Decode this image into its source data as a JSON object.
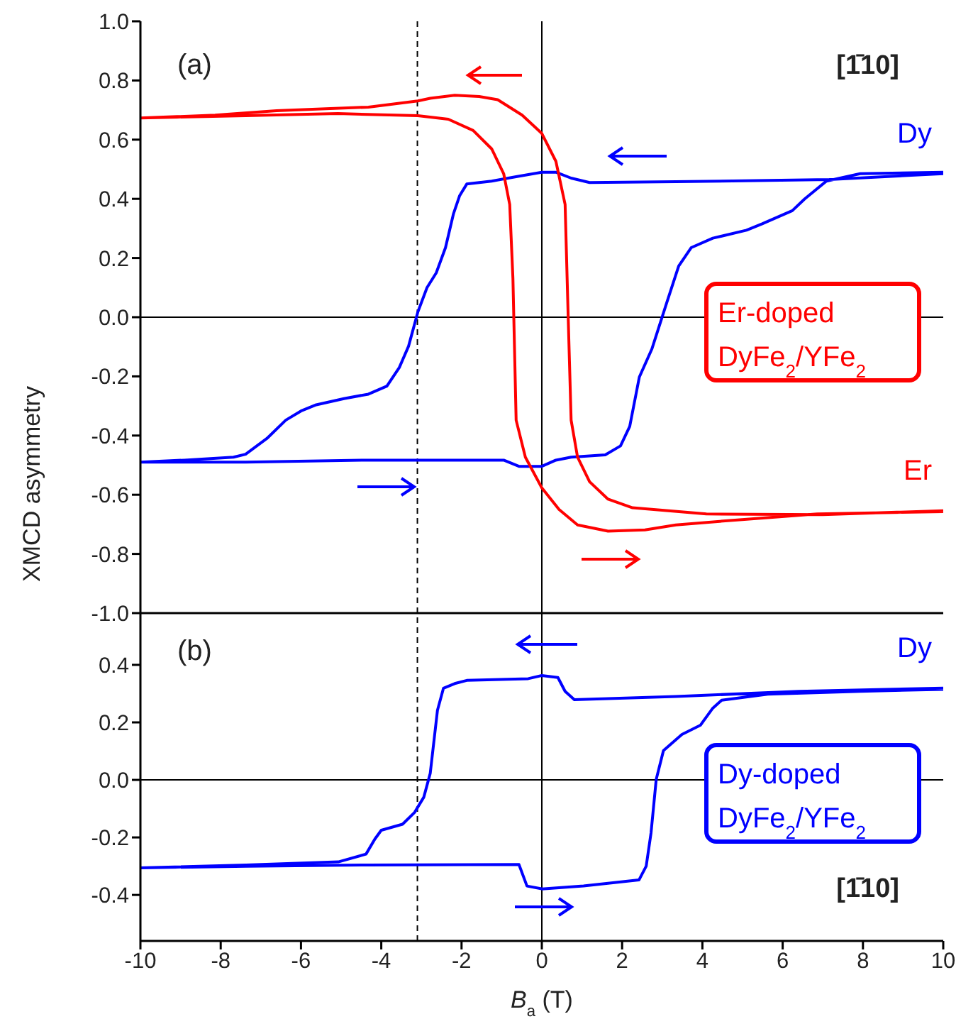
{
  "chart_data": [
    {
      "type": "line",
      "ylabel": "XMCD asymmetry",
      "annotations": [
        "(a)",
        "[1̄10]",
        "Er-doped DyFe$_{2}$/YFe$_{2}$"
      ],
      "xlim": [
        -10,
        10
      ],
      "xticks": [
        -10,
        -8,
        -6,
        -4,
        -2,
        0,
        2,
        4,
        6,
        8,
        10
      ],
      "ylim": [
        -1,
        1
      ],
      "yticks": [
        {
          "value": -1,
          "label": "-1.0"
        },
        -0.8,
        -0.6,
        -0.4,
        -0.2,
        {
          "value": 0,
          "label": "0.0"
        },
        0.2,
        0.4,
        0.6,
        0.8,
        {
          "value": 1,
          "label": "1.0"
        }
      ],
      "tick_labels": "y",
      "grid": false,
      "legend": false,
      "marker": "none",
      "line_style": "solid",
      "ref_lines": [
        {
          "axis": "x",
          "value": -3.1,
          "color": "#000000",
          "line_style": "dashed"
        },
        {
          "axis": "x",
          "value": 0,
          "color": "#000000",
          "line_style": "solid"
        },
        {
          "axis": "y",
          "value": 0,
          "color": "#000000",
          "line_style": "solid"
        }
      ],
      "series": [
        {
          "name": "Dy",
          "color": "#0000ff",
          "x": [
            10,
            7.16,
            3.34,
            1.19,
            0.73,
            0.35,
            0,
            -0.64,
            -1.25,
            -1.87,
            -2.05,
            -2.2,
            -2.4,
            -2.63,
            -2.86,
            -3.09,
            -3.32,
            -3.55,
            -3.86,
            -4.32,
            -4.93,
            -5.62,
            -6,
            -6.38,
            -6.85,
            -7.38,
            -7.68,
            -8.9,
            -10,
            -7.38,
            -4.32,
            -0.95,
            -0.57,
            0,
            0.35,
            0.73,
            1.58,
            1.96,
            2.19,
            2.43,
            2.74,
            3.11,
            3.41,
            3.72,
            4.26,
            5.1,
            5.48,
            6.24,
            6.55,
            7.09,
            7.93,
            10
          ],
          "values": [
            0.485,
            0.465,
            0.458,
            0.455,
            0.47,
            0.49,
            0.49,
            0.475,
            0.46,
            0.45,
            0.41,
            0.35,
            0.235,
            0.15,
            0.1,
            0.017,
            -0.098,
            -0.17,
            -0.233,
            -0.26,
            -0.275,
            -0.296,
            -0.317,
            -0.348,
            -0.41,
            -0.463,
            -0.473,
            -0.483,
            -0.49,
            -0.49,
            -0.483,
            -0.483,
            -0.504,
            -0.504,
            -0.483,
            -0.473,
            -0.465,
            -0.435,
            -0.369,
            -0.202,
            -0.108,
            0.048,
            0.173,
            0.235,
            0.267,
            0.294,
            0.315,
            0.36,
            0.4,
            0.46,
            0.485,
            0.49
          ]
        },
        {
          "name": "Er",
          "color": "#ff0000",
          "x": [
            10,
            7,
            4.1,
            2.26,
            1.65,
            1.19,
            0.89,
            0.73,
            0.66,
            0.58,
            0.35,
            0,
            -0.49,
            -1.1,
            -1.56,
            -2.17,
            -2.78,
            -3.09,
            -4.32,
            -6.61,
            -8.14,
            -10,
            -7.38,
            -5.08,
            -3.09,
            -2.33,
            -1.71,
            -1.25,
            -0.95,
            -0.8,
            -0.72,
            -0.64,
            -0.41,
            0,
            0.43,
            0.89,
            1.65,
            2.57,
            3.34,
            4.87,
            6.86,
            10
          ],
          "values": [
            -0.654,
            -0.667,
            -0.665,
            -0.644,
            -0.615,
            -0.556,
            -0.473,
            -0.348,
            -0.015,
            0.381,
            0.527,
            0.621,
            0.683,
            0.735,
            0.746,
            0.75,
            0.74,
            0.731,
            0.71,
            0.698,
            0.683,
            0.673,
            0.681,
            0.688,
            0.681,
            0.669,
            0.631,
            0.569,
            0.485,
            0.381,
            0.131,
            -0.348,
            -0.473,
            -0.577,
            -0.65,
            -0.702,
            -0.723,
            -0.719,
            -0.702,
            -0.685,
            -0.665,
            -0.657
          ]
        }
      ]
    },
    {
      "type": "line",
      "xlabel": "B$_{a}$ (T)",
      "annotations": [
        "(b)",
        "Dy-doped DyFe$_{2}$/YFe$_{2}$",
        "[1̄10]"
      ],
      "xlim": [
        -10,
        10
      ],
      "xticks": [
        -10,
        -8,
        -6,
        -4,
        -2,
        0,
        2,
        4,
        6,
        8,
        10
      ],
      "ylim": [
        -0.56,
        0.58
      ],
      "yticks": [
        -0.4,
        -0.2,
        {
          "value": 0,
          "label": "0.0"
        },
        0.2,
        0.4
      ],
      "grid": false,
      "legend": false,
      "marker": "none",
      "line_style": "solid",
      "ref_lines": [
        {
          "axis": "x",
          "value": -3.1,
          "color": "#000000",
          "line_style": "dashed"
        },
        {
          "axis": "x",
          "value": 0,
          "color": "#000000",
          "line_style": "solid"
        },
        {
          "axis": "y",
          "value": 0,
          "color": "#000000",
          "line_style": "solid"
        }
      ],
      "series": [
        {
          "name": "Dy",
          "color": "#0000ff",
          "x": [
            10,
            6.4,
            3.34,
            0.81,
            0.58,
            0.4,
            0,
            -0.34,
            -1.87,
            -2.17,
            -2.45,
            -2.6,
            -2.78,
            -2.94,
            -3.17,
            -3.47,
            -4,
            -4.16,
            -4.38,
            -5.07,
            -7.37,
            -10,
            -7.37,
            -4.32,
            -0.57,
            -0.37,
            0,
            1.04,
            2.42,
            2.6,
            2.72,
            2.85,
            3.03,
            3.49,
            3.95,
            4.25,
            4.48,
            5.63,
            7.93,
            10
          ],
          "values": [
            0.319,
            0.308,
            0.29,
            0.279,
            0.308,
            0.356,
            0.363,
            0.352,
            0.346,
            0.335,
            0.319,
            0.242,
            0.023,
            -0.06,
            -0.113,
            -0.154,
            -0.175,
            -0.206,
            -0.258,
            -0.285,
            -0.296,
            -0.306,
            -0.3,
            -0.296,
            -0.294,
            -0.369,
            -0.379,
            -0.369,
            -0.348,
            -0.3,
            -0.185,
            0.002,
            0.102,
            0.158,
            0.19,
            0.248,
            0.277,
            0.298,
            0.308,
            0.315
          ]
        }
      ]
    }
  ]
}
